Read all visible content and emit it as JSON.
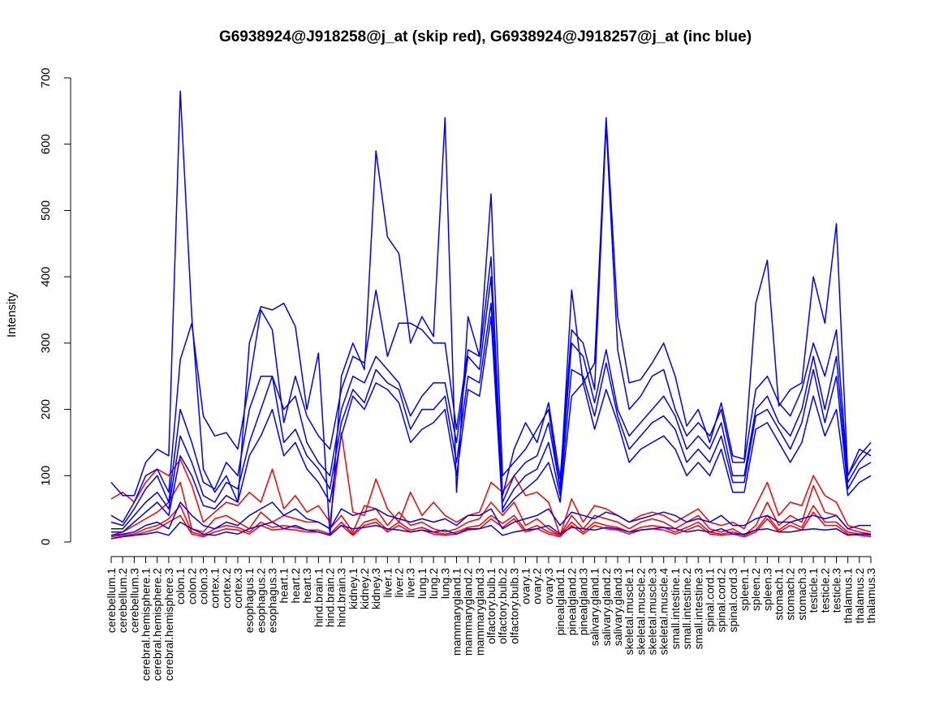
{
  "chart_data": {
    "type": "line",
    "title": "G6938924@J918258@j_at (skip red), G6938924@J918257@j_at (inc blue)",
    "ylabel": "Intensity",
    "ylim": [
      0,
      700
    ],
    "yticks": [
      0,
      100,
      200,
      300,
      400,
      500,
      600,
      700
    ],
    "categories": [
      "cerebellum.1",
      "cerebellum.2",
      "cerebellum.3",
      "cerebral.hemisphere.1",
      "cerebral.hemisphere.2",
      "cerebral.hemisphere.3",
      "colon.1",
      "colon.2",
      "colon.3",
      "cortex.1",
      "cortex.2",
      "cortex.3",
      "esophagus.1",
      "esophagus.2",
      "esophagus.3",
      "heart.1",
      "heart.2",
      "heart.3",
      "hind.brain.1",
      "hind.brain.2",
      "hind.brain.3",
      "kidney.1",
      "kidney.2",
      "kidney.3",
      "liver.1",
      "liver.2",
      "liver.3",
      "lung.1",
      "lung.2",
      "lung.3",
      "mammarygland.1",
      "mammarygland.2",
      "mammarygland.3",
      "olfactory.bulb.1",
      "olfactory.bulb.2",
      "olfactory.bulb.3",
      "ovary.1",
      "ovary.2",
      "ovary.3",
      "pinealgland.1",
      "pinealgland.2",
      "pinealgland.3",
      "salivary.gland.1",
      "salivary.gland.2",
      "salivary.gland.3",
      "skeletal.muscle.1",
      "skeletal.muscle.2",
      "skeletal.muscle.3",
      "skeletal.muscle.4",
      "small.intestine.1",
      "small.intestine.2",
      "small.intestine.3",
      "spinal.cord.1",
      "spinal.cord.2",
      "spinal.cord.3",
      "spleen.1",
      "spleen.2",
      "spleen.3",
      "stomach.1",
      "stomach.2",
      "stomach.3",
      "testicle.1",
      "testicle.2",
      "testicle.3",
      "thalamus.1",
      "thalamus.2",
      "thalamus.3"
    ],
    "colors": {
      "skip": "#ff0000",
      "inc": "#0000ff"
    },
    "series": [
      {
        "group": "skip",
        "values": [
          65,
          75,
          60,
          90,
          110,
          100,
          125,
          85,
          30,
          45,
          60,
          55,
          75,
          60,
          110,
          50,
          70,
          45,
          55,
          30,
          165,
          45,
          40,
          95,
          50,
          30,
          75,
          40,
          60,
          40,
          30,
          40,
          45,
          90,
          75,
          100,
          70,
          75,
          60,
          10,
          65,
          30,
          55,
          50,
          40,
          30,
          40,
          45,
          40,
          30,
          40,
          50,
          30,
          25,
          30,
          20,
          55,
          90,
          40,
          60,
          55,
          100,
          70,
          60,
          25,
          20,
          15
        ]
      },
      {
        "group": "skip",
        "values": [
          10,
          15,
          25,
          35,
          45,
          60,
          90,
          20,
          15,
          35,
          40,
          30,
          20,
          45,
          30,
          40,
          35,
          30,
          30,
          20,
          40,
          15,
          55,
          50,
          25,
          45,
          25,
          30,
          20,
          15,
          20,
          30,
          35,
          60,
          40,
          60,
          25,
          35,
          20,
          10,
          40,
          20,
          40,
          35,
          30,
          20,
          30,
          35,
          30,
          20,
          30,
          40,
          20,
          15,
          20,
          10,
          25,
          60,
          25,
          40,
          30,
          85,
          45,
          40,
          20,
          15,
          12
        ]
      },
      {
        "group": "skip",
        "values": [
          5,
          8,
          10,
          15,
          20,
          30,
          40,
          12,
          8,
          15,
          20,
          18,
          12,
          25,
          18,
          20,
          18,
          15,
          15,
          10,
          25,
          10,
          25,
          30,
          15,
          25,
          15,
          18,
          12,
          10,
          12,
          18,
          20,
          35,
          22,
          35,
          15,
          20,
          12,
          8,
          25,
          12,
          25,
          20,
          18,
          12,
          18,
          20,
          18,
          12,
          18,
          25,
          12,
          10,
          12,
          8,
          15,
          35,
          15,
          25,
          18,
          45,
          25,
          25,
          12,
          10,
          8
        ]
      },
      {
        "group": "skip",
        "values": [
          8,
          10,
          12,
          20,
          25,
          35,
          55,
          15,
          10,
          20,
          25,
          22,
          15,
          30,
          22,
          25,
          22,
          18,
          18,
          12,
          30,
          12,
          30,
          35,
          18,
          30,
          18,
          22,
          15,
          12,
          15,
          22,
          25,
          40,
          28,
          40,
          18,
          25,
          15,
          10,
          30,
          15,
          30,
          25,
          22,
          15,
          22,
          25,
          22,
          15,
          22,
          30,
          15,
          12,
          15,
          10,
          18,
          40,
          18,
          30,
          22,
          55,
          30,
          30,
          15,
          12,
          10
        ]
      },
      {
        "group": "inc",
        "values": [
          90,
          70,
          70,
          120,
          140,
          130,
          680,
          340,
          110,
          75,
          100,
          60,
          300,
          355,
          350,
          360,
          325,
          200,
          285,
          10,
          250,
          300,
          260,
          590,
          460,
          435,
          300,
          340,
          310,
          640,
          75,
          340,
          280,
          525,
          100,
          120,
          140,
          170,
          200,
          80,
          380,
          240,
          270,
          640,
          340,
          240,
          245,
          270,
          300,
          250,
          175,
          200,
          150,
          210,
          130,
          125,
          360,
          425,
          205,
          230,
          240,
          400,
          330,
          480,
          100,
          140,
          130
        ]
      },
      {
        "group": "inc",
        "values": [
          40,
          30,
          60,
          100,
          110,
          75,
          275,
          330,
          190,
          160,
          165,
          140,
          240,
          350,
          320,
          180,
          250,
          190,
          160,
          140,
          230,
          280,
          270,
          380,
          280,
          330,
          330,
          320,
          300,
          300,
          170,
          290,
          280,
          430,
          70,
          140,
          180,
          150,
          210,
          95,
          320,
          300,
          230,
          630,
          290,
          200,
          220,
          250,
          260,
          200,
          160,
          180,
          160,
          200,
          120,
          120,
          230,
          250,
          210,
          190,
          230,
          300,
          250,
          320,
          100,
          130,
          150
        ]
      },
      {
        "group": "inc",
        "values": [
          30,
          25,
          50,
          80,
          100,
          60,
          200,
          150,
          90,
          80,
          120,
          100,
          200,
          250,
          250,
          200,
          220,
          150,
          120,
          100,
          200,
          250,
          240,
          280,
          260,
          240,
          190,
          220,
          240,
          240,
          150,
          280,
          260,
          400,
          60,
          100,
          120,
          130,
          180,
          80,
          300,
          280,
          210,
          290,
          200,
          160,
          180,
          200,
          220,
          190,
          140,
          160,
          140,
          180,
          100,
          100,
          200,
          220,
          180,
          160,
          200,
          280,
          200,
          280,
          90,
          120,
          140
        ]
      },
      {
        "group": "inc",
        "values": [
          20,
          20,
          40,
          60,
          75,
          50,
          160,
          120,
          70,
          60,
          90,
          80,
          150,
          200,
          250,
          150,
          170,
          130,
          110,
          80,
          180,
          230,
          210,
          260,
          240,
          230,
          170,
          200,
          200,
          220,
          120,
          250,
          240,
          360,
          50,
          80,
          100,
          110,
          150,
          70,
          260,
          250,
          190,
          270,
          190,
          140,
          160,
          180,
          190,
          170,
          120,
          140,
          120,
          160,
          90,
          90,
          190,
          200,
          170,
          140,
          180,
          260,
          180,
          250,
          80,
          110,
          120
        ]
      },
      {
        "group": "inc",
        "values": [
          15,
          15,
          30,
          45,
          60,
          40,
          130,
          100,
          55,
          50,
          70,
          60,
          130,
          160,
          200,
          130,
          150,
          110,
          90,
          60,
          160,
          220,
          200,
          240,
          230,
          210,
          150,
          170,
          180,
          200,
          100,
          230,
          220,
          340,
          45,
          65,
          80,
          95,
          120,
          60,
          220,
          240,
          170,
          230,
          180,
          120,
          140,
          150,
          160,
          140,
          100,
          120,
          100,
          140,
          75,
          75,
          170,
          180,
          150,
          120,
          150,
          220,
          160,
          200,
          70,
          90,
          100
        ]
      },
      {
        "group": "inc",
        "values": [
          10,
          12,
          15,
          25,
          30,
          20,
          60,
          40,
          25,
          20,
          30,
          25,
          40,
          50,
          60,
          40,
          50,
          35,
          30,
          20,
          50,
          40,
          45,
          50,
          40,
          35,
          30,
          35,
          30,
          35,
          25,
          40,
          40,
          50,
          20,
          30,
          35,
          40,
          50,
          25,
          45,
          40,
          35,
          45,
          40,
          30,
          35,
          40,
          45,
          40,
          30,
          35,
          30,
          40,
          25,
          25,
          35,
          40,
          30,
          30,
          35,
          40,
          35,
          40,
          20,
          25,
          25
        ]
      },
      {
        "group": "inc",
        "values": [
          5,
          8,
          10,
          12,
          15,
          10,
          30,
          20,
          12,
          10,
          15,
          12,
          20,
          25,
          30,
          20,
          25,
          18,
          15,
          10,
          25,
          20,
          22,
          25,
          20,
          18,
          15,
          18,
          15,
          18,
          12,
          20,
          20,
          25,
          10,
          15,
          18,
          20,
          25,
          12,
          22,
          20,
          18,
          22,
          20,
          15,
          18,
          20,
          22,
          20,
          15,
          18,
          15,
          20,
          12,
          12,
          18,
          20,
          15,
          15,
          18,
          20,
          18,
          20,
          10,
          12,
          12
        ]
      }
    ]
  }
}
